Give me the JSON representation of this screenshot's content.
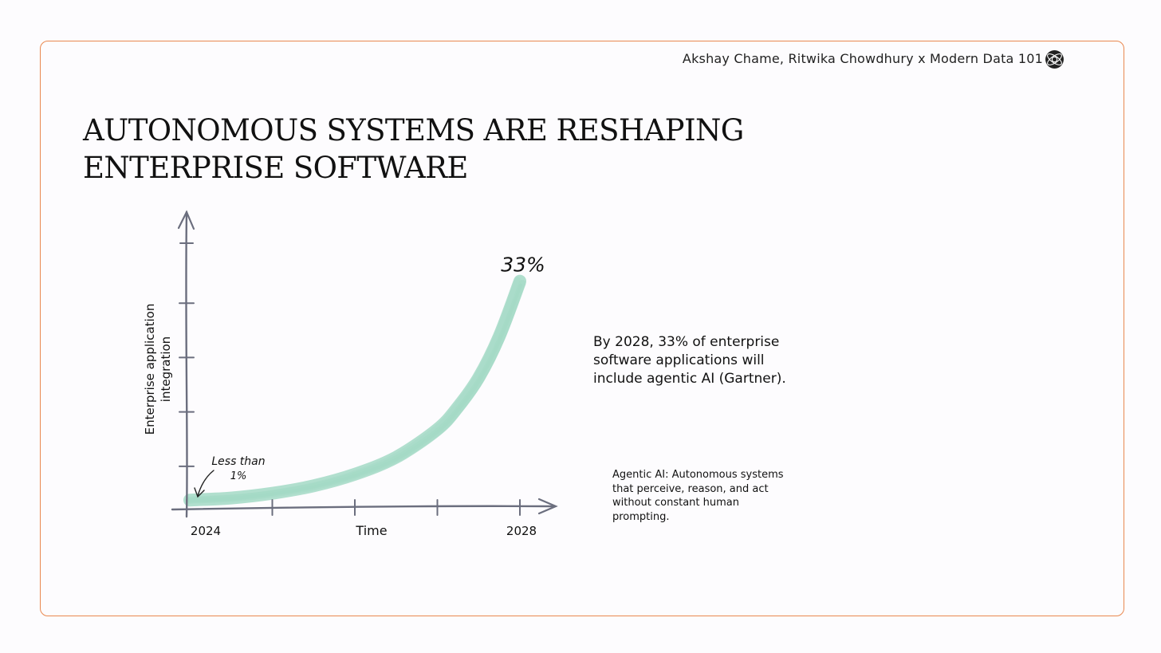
{
  "header": {
    "credit": "Akshay Chame, Ritwika Chowdhury x Modern Data 101",
    "logo_icon": "globe-logo-icon"
  },
  "title": {
    "line1": "AUTONOMOUS SYSTEMS ARE RESHAPING",
    "line2": "ENTERPRISE SOFTWARE"
  },
  "chart_data": {
    "type": "line",
    "title": "",
    "xlabel": "Time",
    "ylabel_lines": [
      "Enterprise application",
      "integration"
    ],
    "x_tick_labels": [
      {
        "label": "2024",
        "x": 2024
      },
      {
        "label": "2028",
        "x": 2028
      }
    ],
    "xlim": [
      2024,
      2028
    ],
    "ylim": [
      0,
      38
    ],
    "series": [
      {
        "x": [
          2024.0,
          2024.5,
          2025.0,
          2025.5,
          2026.0,
          2026.5,
          2027.0,
          2027.25,
          2027.5,
          2027.75,
          2028.0
        ],
        "y": [
          0.8,
          1.1,
          1.8,
          2.9,
          4.6,
          7.1,
          11.2,
          14.5,
          18.8,
          24.9,
          33.0
        ]
      }
    ],
    "annotations": [
      {
        "text_lines": [
          "Less than",
          "1%"
        ],
        "x": 2024,
        "y": 0.8
      },
      {
        "text": "33%",
        "x": 2028,
        "y": 33
      }
    ],
    "colors": {
      "line": "#a3d9c5",
      "axis": "#6b6e7e"
    }
  },
  "blurb": "By 2028, 33% of enterprise software applications will include agentic AI (Gartner).",
  "definition": "Agentic AI: Autonomous systems that perceive, reason, and act without constant human prompting.",
  "colors": {
    "frame": "#e9884f",
    "curve": "#a3d9c5",
    "axis": "#6b6e7e"
  }
}
